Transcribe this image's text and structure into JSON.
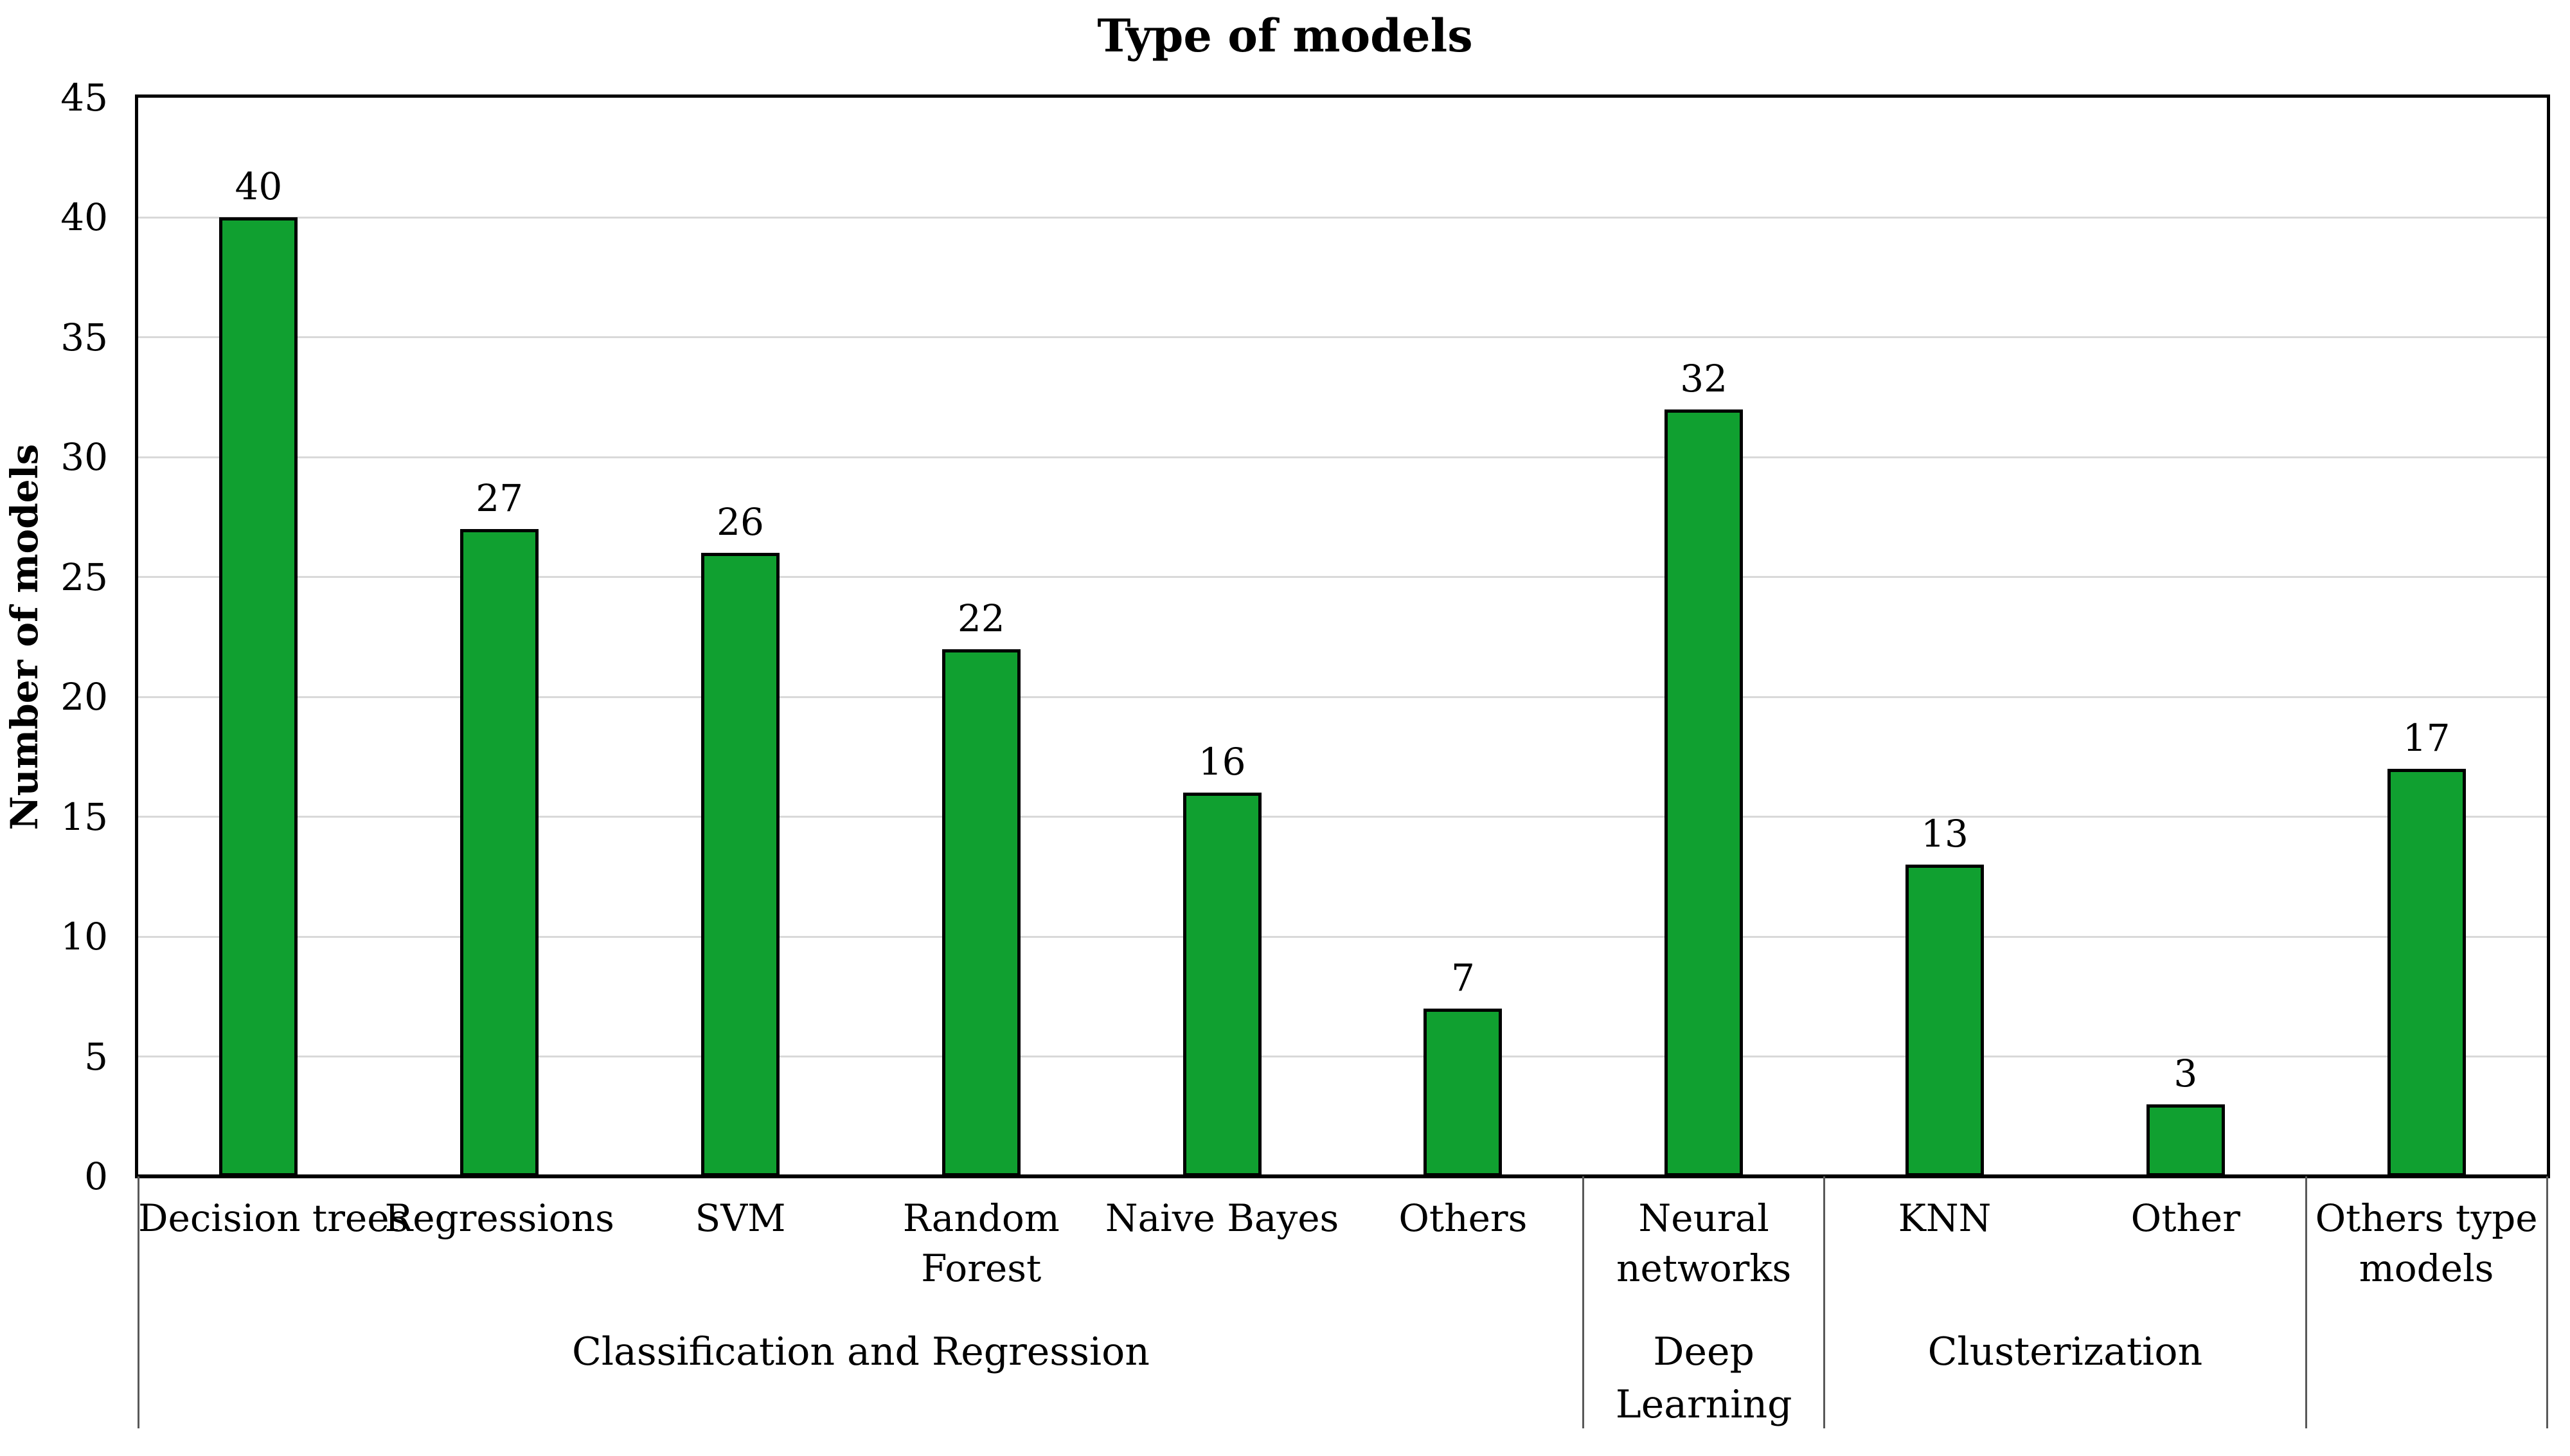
{
  "chart_data": {
    "type": "bar",
    "title": "Type of models",
    "ylabel": "Number of models",
    "xlabel": "",
    "ylim": [
      0,
      45
    ],
    "yticks": [
      0,
      5,
      10,
      15,
      20,
      25,
      30,
      35,
      40,
      45
    ],
    "grid": "horizontal gridlines every 5 units",
    "legend": "none",
    "bar_color": "#10A030",
    "bar_border_color": "#000000",
    "gridline_color": "#D9D9D9",
    "axis_color": "#000000",
    "separator_color": "#595959",
    "categories": [
      "Decision trees",
      "Regressions",
      "SVM",
      "Random Forest",
      "Naive Bayes",
      "Others",
      "Neural networks",
      "KNN",
      "Other",
      "Others type models"
    ],
    "values": [
      40,
      27,
      26,
      22,
      16,
      7,
      32,
      13,
      3,
      17
    ],
    "data_labels": [
      "40",
      "27",
      "26",
      "22",
      "16",
      "7",
      "32",
      "13",
      "3",
      "17"
    ],
    "category_label_lines": [
      [
        "Decision trees"
      ],
      [
        "Regressions"
      ],
      [
        "SVM"
      ],
      [
        "Random",
        "Forest"
      ],
      [
        "Naive Bayes"
      ],
      [
        "Others"
      ],
      [
        "Neural",
        "networks"
      ],
      [
        "KNN"
      ],
      [
        "Other"
      ],
      [
        "Others type",
        "models"
      ]
    ],
    "groups": [
      {
        "label": "Classification and Regression",
        "label_lines": [
          "Classification and Regression"
        ],
        "span": [
          0,
          5
        ]
      },
      {
        "label": "Deep Learning",
        "label_lines": [
          "Deep",
          "Learning"
        ],
        "span": [
          6,
          6
        ]
      },
      {
        "label": "Clusterization",
        "label_lines": [
          "Clusterization"
        ],
        "span": [
          7,
          8
        ]
      },
      {
        "label": "",
        "label_lines": [],
        "span": [
          9,
          9
        ]
      }
    ]
  }
}
